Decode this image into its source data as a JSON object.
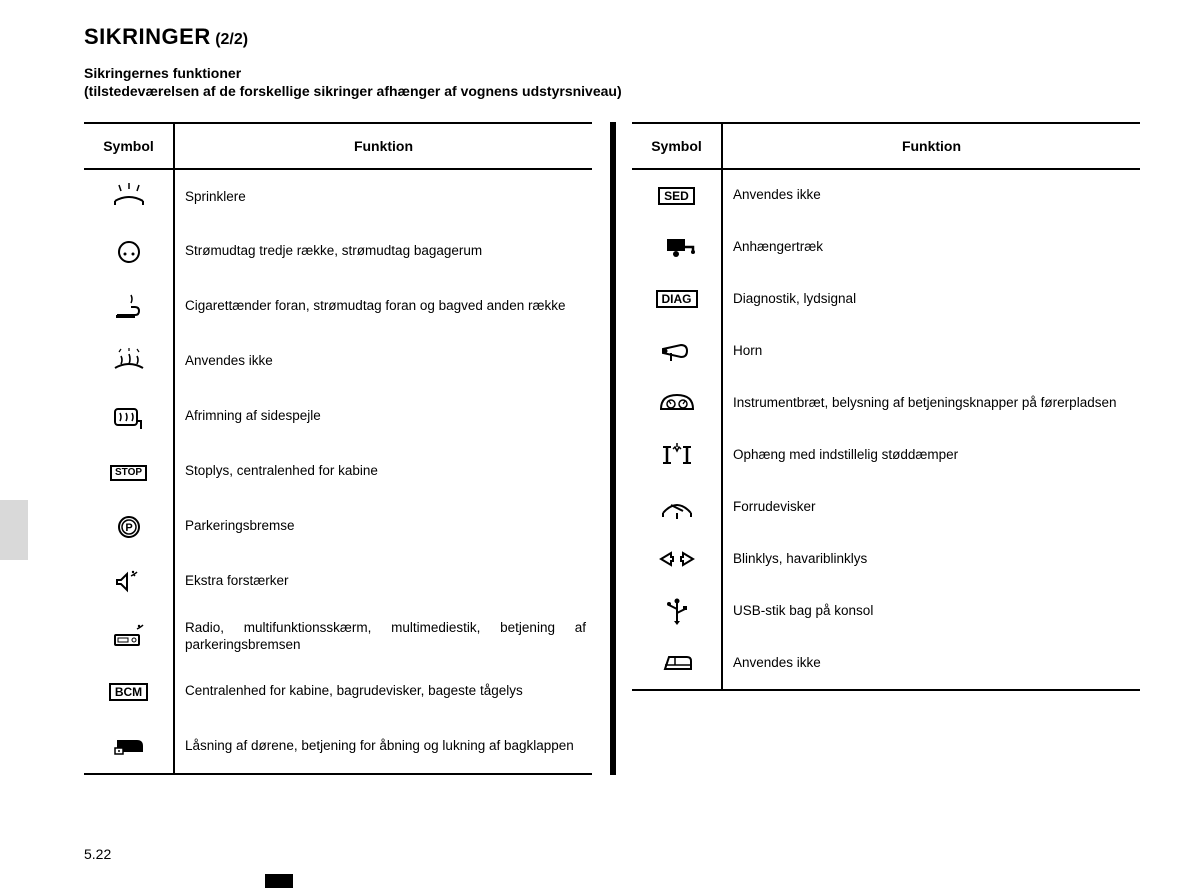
{
  "title": {
    "main": "SIKRINGER",
    "sub": "(2/2)"
  },
  "intro_line1": "Sikringernes funktioner",
  "intro_line2": "(tilstedeværelsen af de forskellige sikringer afhænger af vognens udstyrsniveau)",
  "headers": {
    "symbol": "Symbol",
    "function": "Funktion"
  },
  "page_number": "5.22",
  "left": [
    {
      "icon": "washer",
      "fn": "Sprinklere"
    },
    {
      "icon": "socket",
      "fn": "Strømudtag tredje række, strømudtag bagagerum"
    },
    {
      "icon": "lighter",
      "fn": "Cigarettænder foran, strømudtag foran og bagved anden række"
    },
    {
      "icon": "defrost",
      "fn": "Anvendes ikke"
    },
    {
      "icon": "mirror-heat",
      "fn": "Afrimning af sidespejle"
    },
    {
      "icon": "STOP",
      "fn": "Stoplys, centralenhed for kabine"
    },
    {
      "icon": "parking",
      "fn": "Parkeringsbremse"
    },
    {
      "icon": "speaker",
      "fn": "Ekstra forstærker"
    },
    {
      "icon": "radio",
      "fn": "Radio, multifunktionsskærm, multimediestik, betjening af parkeringsbremsen"
    },
    {
      "icon": "BCM",
      "fn": "Centralenhed for kabine, bagrudevisker, bageste tågelys"
    },
    {
      "icon": "door-lock",
      "fn": "Låsning af dørene, betjening for åbning og lukning af bagklappen"
    }
  ],
  "right": [
    {
      "icon": "SED",
      "fn": "Anvendes ikke"
    },
    {
      "icon": "trailer",
      "fn": "Anhængertræk"
    },
    {
      "icon": "DIAG",
      "fn": "Diagnostik, lydsignal"
    },
    {
      "icon": "horn",
      "fn": "Horn"
    },
    {
      "icon": "dashboard",
      "fn": "Instrumentbræt, belysning af betjeningsknapper på førerpladsen"
    },
    {
      "icon": "suspension",
      "fn": "Ophæng med indstillelig støddæmper"
    },
    {
      "icon": "wiper",
      "fn": "Forrudevisker"
    },
    {
      "icon": "turn",
      "fn": "Blinklys, havariblinklys"
    },
    {
      "icon": "usb",
      "fn": "USB-stik bag på konsol"
    },
    {
      "icon": "window",
      "fn": "Anvendes ikke"
    }
  ],
  "box_labels": {
    "STOP": "STOP",
    "BCM": "BCM",
    "SED": "SED",
    "DIAG": "DIAG"
  }
}
